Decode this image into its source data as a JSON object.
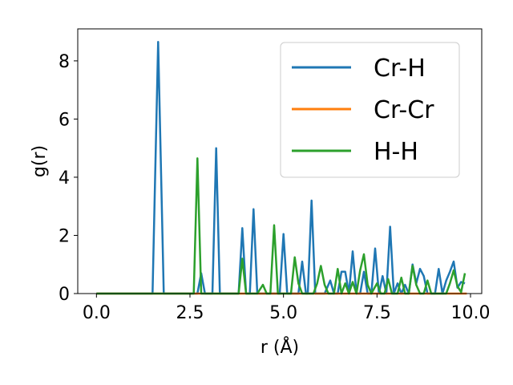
{
  "chart_data": {
    "type": "line",
    "title": "",
    "xlabel": "r (Å)",
    "ylabel": "g(r)",
    "xlim": [
      -0.5,
      10.3
    ],
    "ylim": [
      0,
      9.1
    ],
    "xticks": [
      0,
      2.5,
      5,
      7.5,
      10
    ],
    "xtick_labels": [
      "0.0",
      "2.5",
      "5.0",
      "7.5",
      "10.0"
    ],
    "yticks": [
      0,
      2,
      4,
      6,
      8
    ],
    "ytick_labels": [
      "0",
      "2",
      "4",
      "6",
      "8"
    ],
    "grid": false,
    "legend_position": "top-right",
    "series": [
      {
        "name": "Cr-H",
        "color": "#1f77b4",
        "points": [
          [
            0,
            0
          ],
          [
            1.5,
            0
          ],
          [
            1.65,
            8.65
          ],
          [
            1.8,
            0
          ],
          [
            2.7,
            0
          ],
          [
            2.8,
            0.7
          ],
          [
            2.9,
            0
          ],
          [
            3.1,
            0
          ],
          [
            3.2,
            5.0
          ],
          [
            3.3,
            0
          ],
          [
            3.8,
            0
          ],
          [
            3.9,
            2.25
          ],
          [
            4.0,
            0
          ],
          [
            4.1,
            0
          ],
          [
            4.2,
            2.9
          ],
          [
            4.3,
            0
          ],
          [
            4.9,
            0
          ],
          [
            5.0,
            2.05
          ],
          [
            5.1,
            0
          ],
          [
            5.4,
            0
          ],
          [
            5.5,
            1.1
          ],
          [
            5.6,
            0
          ],
          [
            5.65,
            0
          ],
          [
            5.75,
            3.2
          ],
          [
            5.85,
            0
          ],
          [
            6.1,
            0
          ],
          [
            6.25,
            0.45
          ],
          [
            6.35,
            0
          ],
          [
            6.45,
            0
          ],
          [
            6.55,
            0.75
          ],
          [
            6.65,
            0.75
          ],
          [
            6.75,
            0
          ],
          [
            6.85,
            1.45
          ],
          [
            6.95,
            0
          ],
          [
            7.05,
            0
          ],
          [
            7.15,
            0.75
          ],
          [
            7.25,
            0
          ],
          [
            7.35,
            0
          ],
          [
            7.45,
            1.55
          ],
          [
            7.55,
            0
          ],
          [
            7.65,
            0.6
          ],
          [
            7.75,
            0
          ],
          [
            7.85,
            2.3
          ],
          [
            7.95,
            0
          ],
          [
            8.05,
            0.35
          ],
          [
            8.15,
            0
          ],
          [
            8.25,
            0.3
          ],
          [
            8.35,
            0
          ],
          [
            8.45,
            1.0
          ],
          [
            8.55,
            0.35
          ],
          [
            8.65,
            0.85
          ],
          [
            8.75,
            0.6
          ],
          [
            8.85,
            0
          ],
          [
            9.05,
            0
          ],
          [
            9.15,
            0.85
          ],
          [
            9.25,
            0
          ],
          [
            9.35,
            0.45
          ],
          [
            9.45,
            0.75
          ],
          [
            9.55,
            1.1
          ],
          [
            9.65,
            0.2
          ],
          [
            9.75,
            0.4
          ],
          [
            9.85,
            0.35
          ]
        ]
      },
      {
        "name": "Cr-Cr",
        "color": "#ff7f0e",
        "points": [
          [
            0,
            0
          ],
          [
            9.9,
            0
          ]
        ]
      },
      {
        "name": "H-H",
        "color": "#2ca02c",
        "points": [
          [
            0,
            0
          ],
          [
            2.6,
            0
          ],
          [
            2.7,
            4.65
          ],
          [
            2.8,
            0
          ],
          [
            3.8,
            0
          ],
          [
            3.9,
            1.2
          ],
          [
            4.0,
            0
          ],
          [
            4.3,
            0
          ],
          [
            4.45,
            0.3
          ],
          [
            4.55,
            0
          ],
          [
            4.65,
            0
          ],
          [
            4.75,
            2.35
          ],
          [
            4.85,
            0
          ],
          [
            5.2,
            0
          ],
          [
            5.3,
            1.25
          ],
          [
            5.4,
            0.35
          ],
          [
            5.5,
            0
          ],
          [
            5.8,
            0
          ],
          [
            5.9,
            0.35
          ],
          [
            6.0,
            0.95
          ],
          [
            6.1,
            0.3
          ],
          [
            6.2,
            0
          ],
          [
            6.35,
            0
          ],
          [
            6.45,
            0.85
          ],
          [
            6.55,
            0
          ],
          [
            6.65,
            0.35
          ],
          [
            6.75,
            0
          ],
          [
            6.85,
            0.4
          ],
          [
            6.95,
            0
          ],
          [
            7.05,
            0.8
          ],
          [
            7.15,
            1.35
          ],
          [
            7.25,
            0.3
          ],
          [
            7.35,
            0
          ],
          [
            7.5,
            0.35
          ],
          [
            7.6,
            0
          ],
          [
            7.7,
            0
          ],
          [
            7.8,
            0.5
          ],
          [
            7.9,
            0
          ],
          [
            8.05,
            0
          ],
          [
            8.15,
            0.55
          ],
          [
            8.25,
            0
          ],
          [
            8.35,
            0
          ],
          [
            8.45,
            0.95
          ],
          [
            8.55,
            0.3
          ],
          [
            8.65,
            0
          ],
          [
            8.75,
            0
          ],
          [
            8.85,
            0.45
          ],
          [
            8.95,
            0
          ],
          [
            9.35,
            0
          ],
          [
            9.45,
            0.35
          ],
          [
            9.55,
            0.8
          ],
          [
            9.65,
            0.25
          ],
          [
            9.75,
            0.05
          ],
          [
            9.85,
            0.7
          ]
        ]
      }
    ]
  }
}
